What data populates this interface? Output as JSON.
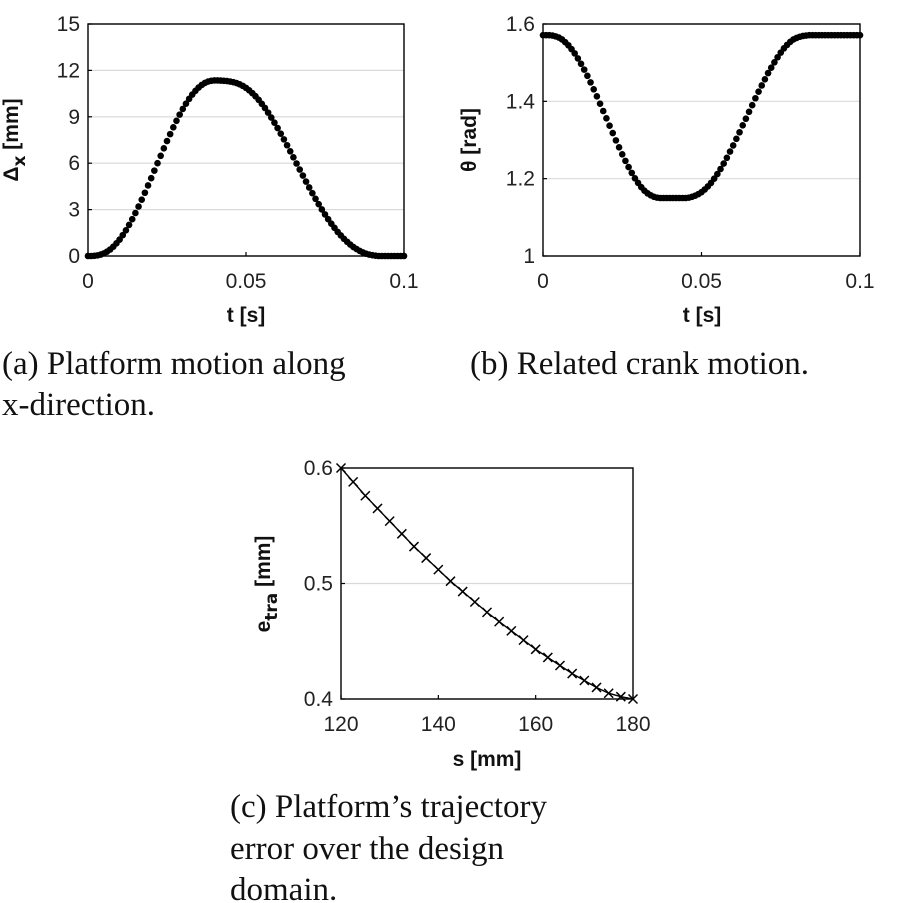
{
  "captions": {
    "a_line1": "(a) Platform motion along",
    "a_line2": "x-direction.",
    "b_line1": "(b) Related crank motion.",
    "c_line1": "(c) Platform’s trajectory",
    "c_line2": "error over the design",
    "c_line3": "domain."
  },
  "chart_data": [
    {
      "id": "a",
      "type": "scatter",
      "xlabel": "t [s]",
      "ylabel_main": "Δ",
      "ylabel_sub": "x",
      "ylabel_unit": " [mm]",
      "xlim": [
        0,
        0.1
      ],
      "ylim": [
        0,
        15
      ],
      "xticks": [
        0,
        0.05,
        0.1
      ],
      "xtick_labels": [
        "0",
        "0.05",
        "0.1"
      ],
      "yticks": [
        0,
        3,
        6,
        9,
        12,
        15
      ],
      "ytick_labels": [
        "0",
        "3",
        "6",
        "9",
        "12",
        "15"
      ],
      "grid": "horizontal",
      "marker": "dot",
      "x": [
        0,
        0.001,
        0.002,
        0.003,
        0.004,
        0.005,
        0.006,
        0.007,
        0.008,
        0.009,
        0.01,
        0.011,
        0.012,
        0.013,
        0.014,
        0.015,
        0.016,
        0.017,
        0.018,
        0.019,
        0.02,
        0.021,
        0.022,
        0.023,
        0.024,
        0.025,
        0.026,
        0.027,
        0.028,
        0.029,
        0.03,
        0.031,
        0.032,
        0.033,
        0.034,
        0.035,
        0.036,
        0.037,
        0.038,
        0.039,
        0.04,
        0.041,
        0.042,
        0.043,
        0.044,
        0.045,
        0.046,
        0.047,
        0.048,
        0.049,
        0.05,
        0.051,
        0.052,
        0.053,
        0.054,
        0.055,
        0.056,
        0.057,
        0.058,
        0.059,
        0.06,
        0.061,
        0.062,
        0.063,
        0.064,
        0.065,
        0.066,
        0.067,
        0.068,
        0.069,
        0.07,
        0.071,
        0.072,
        0.073,
        0.074,
        0.075,
        0.076,
        0.077,
        0.078,
        0.079,
        0.08,
        0.081,
        0.082,
        0.083,
        0.084,
        0.085,
        0.086,
        0.087,
        0.088,
        0.089,
        0.09,
        0.091,
        0.092,
        0.093,
        0.094,
        0.095,
        0.096,
        0.097,
        0.098,
        0.099,
        0.1
      ],
      "y": [
        0.0,
        0.0,
        0.01,
        0.04,
        0.09,
        0.17,
        0.28,
        0.42,
        0.6,
        0.82,
        1.06,
        1.35,
        1.66,
        2.01,
        2.38,
        2.78,
        3.2,
        3.64,
        4.09,
        4.56,
        5.03,
        5.52,
        6.0,
        6.48,
        6.96,
        7.43,
        7.88,
        8.32,
        8.74,
        9.14,
        9.51,
        9.85,
        10.16,
        10.44,
        10.68,
        10.89,
        11.06,
        11.19,
        11.28,
        11.33,
        11.35,
        11.35,
        11.34,
        11.33,
        11.31,
        11.28,
        11.24,
        11.18,
        11.1,
        11.0,
        10.87,
        10.71,
        10.53,
        10.33,
        10.1,
        9.84,
        9.57,
        9.27,
        8.95,
        8.62,
        8.27,
        7.91,
        7.54,
        7.16,
        6.77,
        6.38,
        5.98,
        5.59,
        5.2,
        4.81,
        4.43,
        4.06,
        3.7,
        3.35,
        3.01,
        2.69,
        2.38,
        2.09,
        1.82,
        1.56,
        1.33,
        1.11,
        0.92,
        0.74,
        0.58,
        0.45,
        0.33,
        0.23,
        0.15,
        0.09,
        0.05,
        0.02,
        0.0,
        0.0,
        0.0,
        0.0,
        0.0,
        0.0,
        0.0,
        0.0,
        0.0
      ]
    },
    {
      "id": "b",
      "type": "scatter",
      "xlabel": "t [s]",
      "ylabel_main": "θ",
      "ylabel_sub": "",
      "ylabel_unit": " [rad]",
      "xlim": [
        0,
        0.1
      ],
      "ylim": [
        1,
        1.6
      ],
      "xticks": [
        0,
        0.05,
        0.1
      ],
      "xtick_labels": [
        "0",
        "0.05",
        "0.1"
      ],
      "yticks": [
        1,
        1.2,
        1.4,
        1.6
      ],
      "ytick_labels": [
        "1",
        "1.2",
        "1.4",
        "1.6"
      ],
      "grid": "horizontal",
      "marker": "dot",
      "x": [
        0,
        0.001,
        0.002,
        0.003,
        0.004,
        0.005,
        0.006,
        0.007,
        0.008,
        0.009,
        0.01,
        0.011,
        0.012,
        0.013,
        0.014,
        0.015,
        0.016,
        0.017,
        0.018,
        0.019,
        0.02,
        0.021,
        0.022,
        0.023,
        0.024,
        0.025,
        0.026,
        0.027,
        0.028,
        0.029,
        0.03,
        0.031,
        0.032,
        0.033,
        0.034,
        0.035,
        0.036,
        0.037,
        0.038,
        0.039,
        0.04,
        0.041,
        0.042,
        0.043,
        0.044,
        0.045,
        0.046,
        0.047,
        0.048,
        0.049,
        0.05,
        0.051,
        0.052,
        0.053,
        0.054,
        0.055,
        0.056,
        0.057,
        0.058,
        0.059,
        0.06,
        0.061,
        0.062,
        0.063,
        0.064,
        0.065,
        0.066,
        0.067,
        0.068,
        0.069,
        0.07,
        0.071,
        0.072,
        0.073,
        0.074,
        0.075,
        0.076,
        0.077,
        0.078,
        0.079,
        0.08,
        0.081,
        0.082,
        0.083,
        0.084,
        0.085,
        0.086,
        0.087,
        0.088,
        0.089,
        0.09,
        0.091,
        0.092,
        0.093,
        0.094,
        0.095,
        0.096,
        0.097,
        0.098,
        0.099,
        0.1
      ],
      "y": [
        1.571,
        1.571,
        1.571,
        1.57,
        1.568,
        1.565,
        1.56,
        1.553,
        1.545,
        1.535,
        1.524,
        1.511,
        1.497,
        1.482,
        1.466,
        1.449,
        1.431,
        1.413,
        1.394,
        1.375,
        1.356,
        1.337,
        1.318,
        1.299,
        1.281,
        1.263,
        1.246,
        1.23,
        1.215,
        1.201,
        1.189,
        1.178,
        1.169,
        1.162,
        1.157,
        1.153,
        1.151,
        1.15,
        1.15,
        1.15,
        1.15,
        1.15,
        1.15,
        1.15,
        1.15,
        1.15,
        1.151,
        1.153,
        1.156,
        1.16,
        1.165,
        1.172,
        1.18,
        1.189,
        1.2,
        1.212,
        1.225,
        1.239,
        1.254,
        1.27,
        1.286,
        1.303,
        1.32,
        1.338,
        1.355,
        1.373,
        1.39,
        1.408,
        1.425,
        1.441,
        1.457,
        1.473,
        1.487,
        1.501,
        1.514,
        1.526,
        1.537,
        1.546,
        1.554,
        1.56,
        1.564,
        1.567,
        1.569,
        1.57,
        1.571,
        1.571,
        1.571,
        1.571,
        1.571,
        1.571,
        1.571,
        1.571,
        1.571,
        1.571,
        1.571,
        1.571,
        1.571,
        1.571,
        1.571,
        1.571,
        1.571
      ]
    },
    {
      "id": "c",
      "type": "line",
      "xlabel": "s [mm]",
      "ylabel_main": "e",
      "ylabel_sub": "tra",
      "ylabel_unit": " [mm]",
      "xlim": [
        120,
        180
      ],
      "ylim": [
        0.4,
        0.6
      ],
      "xticks": [
        120,
        140,
        160,
        180
      ],
      "xtick_labels": [
        "120",
        "140",
        "160",
        "180"
      ],
      "yticks": [
        0.4,
        0.5,
        0.6
      ],
      "ytick_labels": [
        "0.4",
        "0.5",
        "0.6"
      ],
      "grid": "horizontal",
      "marker": "x",
      "x": [
        120,
        122.5,
        125,
        127.5,
        130,
        132.5,
        135,
        137.5,
        140,
        142.5,
        145,
        147.5,
        150,
        152.5,
        155,
        157.5,
        160,
        162.5,
        165,
        167.5,
        170,
        172.5,
        175,
        177.5,
        180
      ],
      "y": [
        0.6,
        0.588,
        0.576,
        0.565,
        0.554,
        0.543,
        0.532,
        0.522,
        0.512,
        0.502,
        0.493,
        0.484,
        0.475,
        0.467,
        0.459,
        0.451,
        0.443,
        0.436,
        0.429,
        0.422,
        0.416,
        0.41,
        0.405,
        0.402,
        0.4
      ]
    }
  ]
}
